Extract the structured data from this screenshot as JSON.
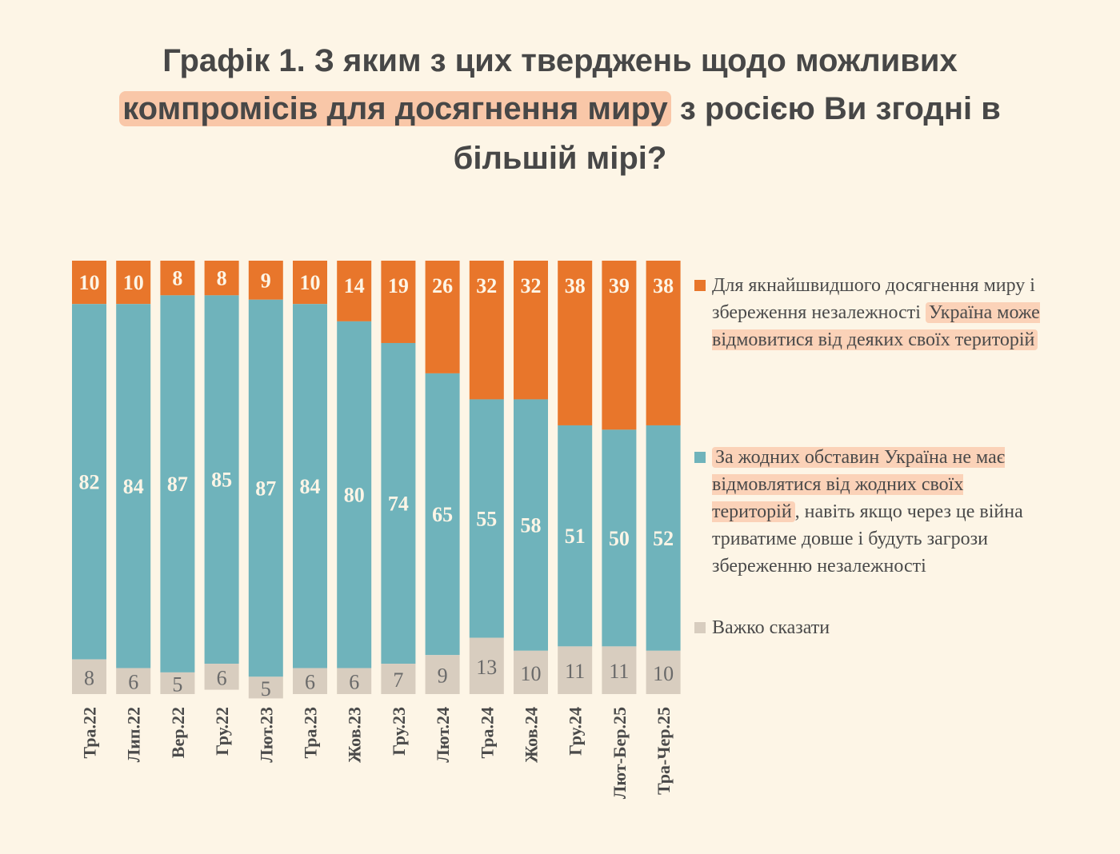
{
  "title": {
    "line1": "Графік 1. З яким з цих тверджень щодо можливих",
    "line2_highlight": "компромісів для досягнення миру",
    "line2_rest": " з росією Ви згодні в",
    "line3": "більшій мірі?"
  },
  "colors": {
    "background": "#fdf5e6",
    "orange": "#e8762b",
    "teal": "#6fb3bb",
    "gray": "#d8cdbf",
    "highlight": "#f9c7a8"
  },
  "chart_data": {
    "type": "bar",
    "stacked": true,
    "orientation": "vertical",
    "ylim": [
      0,
      100
    ],
    "grid": false,
    "legend_position": "right",
    "categories": [
      "Тра.22",
      "Лип.22",
      "Вер.22",
      "Гру.22",
      "Лют.23",
      "Тра.23",
      "Жов.23",
      "Гру.23",
      "Лют.24",
      "Тра.24",
      "Жов.24",
      "Гру.24",
      "Лют-Бер.25",
      "Тра-Чер.25"
    ],
    "series": [
      {
        "key": "orange",
        "name": "Для якнайшвидшого досягнення миру і збереження незалежності Україна може відмовитися від деяких своїх територій",
        "color": "#e8762b",
        "values": [
          10,
          10,
          8,
          8,
          9,
          10,
          14,
          19,
          26,
          32,
          32,
          38,
          39,
          38
        ]
      },
      {
        "key": "teal",
        "name": "За жодних обставин Україна не має відмовлятися від жодних своїх територій, навіть якщо через це війна триватиме довше і будуть загрози збереженню незалежності",
        "color": "#6fb3bb",
        "values": [
          82,
          84,
          87,
          85,
          87,
          84,
          80,
          74,
          65,
          55,
          58,
          51,
          50,
          52
        ]
      },
      {
        "key": "gray",
        "name": "Важко сказати",
        "color": "#d8cdbf",
        "values": [
          8,
          6,
          5,
          6,
          5,
          6,
          6,
          7,
          9,
          13,
          10,
          11,
          11,
          10
        ]
      }
    ]
  },
  "legend": {
    "orange": {
      "plain": "Для якнайшвидшого досягнення миру і збереження незалежності",
      "highlight": "Україна може відмовитися від деяких своїх територій"
    },
    "teal": {
      "highlight": "За жодних обставин Україна не має відмовлятися від жодних своїх територій",
      "plain": ", навіть якщо через це війна триватиме довше і будуть загрози збереженню незалежності"
    },
    "gray": {
      "plain": "Важко сказати"
    }
  }
}
